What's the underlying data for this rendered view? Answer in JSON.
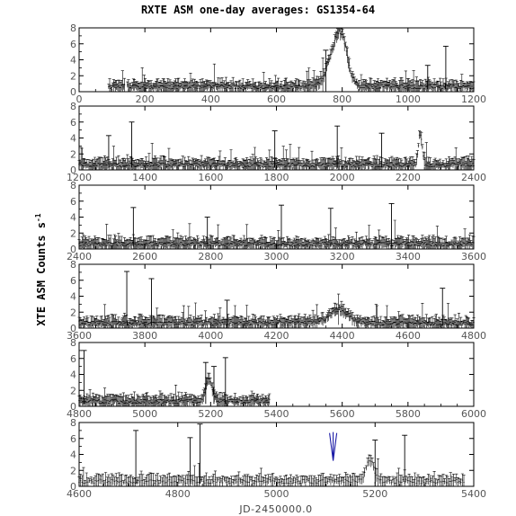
{
  "chart_data": {
    "type": "scatter",
    "title": "RXTE ASM one-day averages: GS1354-64",
    "ylabel": "XTE ASM Counts s",
    "ylabel_sup": "-1",
    "xlabel": "JD-2450000.0",
    "grid": false,
    "error_bars": true,
    "panels": [
      {
        "xlim": [
          0,
          1200
        ],
        "ylim": [
          0,
          8
        ],
        "x_ticks": [
          "0",
          "200",
          "400",
          "600",
          "800",
          "1000",
          "1200"
        ],
        "y_ticks": [
          "0",
          "2",
          "4",
          "6",
          "8"
        ],
        "data_start": 90,
        "data_end": 1200,
        "features": [
          [
            780,
            4.2,
            35
          ],
          [
            800,
            3.5,
            25
          ]
        ],
        "spikes": [
          [
            1115,
            5.7
          ],
          [
            1060,
            3.3
          ],
          [
            750,
            5.2
          ]
        ]
      },
      {
        "xlim": [
          1200,
          2400
        ],
        "ylim": [
          0,
          8
        ],
        "x_ticks": [
          "1200",
          "1400",
          "1600",
          "1800",
          "2000",
          "2200",
          "2400"
        ],
        "y_ticks": [
          "0",
          "2",
          "4",
          "6",
          "8"
        ],
        "data_start": 1200,
        "data_end": 2400,
        "features": [
          [
            2238,
            4.0,
            8
          ]
        ],
        "spikes": [
          [
            1360,
            6.0
          ],
          [
            1290,
            4.3
          ],
          [
            1795,
            4.9
          ],
          [
            1985,
            5.5
          ],
          [
            2120,
            4.6
          ]
        ]
      },
      {
        "xlim": [
          2400,
          3600
        ],
        "ylim": [
          0,
          8
        ],
        "x_ticks": [
          "2400",
          "2600",
          "2800",
          "3000",
          "3200",
          "3400",
          "3600"
        ],
        "y_ticks": [
          "0",
          "2",
          "4",
          "6",
          "8"
        ],
        "data_start": 2400,
        "data_end": 3600,
        "features": [],
        "spikes": [
          [
            2565,
            5.2
          ],
          [
            3015,
            5.5
          ],
          [
            3165,
            5.1
          ],
          [
            3350,
            5.7
          ],
          [
            2790,
            4.0
          ]
        ]
      },
      {
        "xlim": [
          3600,
          4800
        ],
        "ylim": [
          0,
          8
        ],
        "x_ticks": [
          "3600",
          "3800",
          "4000",
          "4200",
          "4400",
          "4600",
          "4800"
        ],
        "y_ticks": [
          "0",
          "2",
          "4",
          "6",
          "8"
        ],
        "data_start": 3600,
        "data_end": 4800,
        "features": [
          [
            4390,
            1.7,
            40
          ]
        ],
        "spikes": [
          [
            3745,
            7.1
          ],
          [
            3820,
            6.2
          ],
          [
            4705,
            5.0
          ],
          [
            4050,
            3.5
          ]
        ]
      },
      {
        "xlim": [
          4800,
          6000
        ],
        "ylim": [
          0,
          8
        ],
        "x_ticks": [
          "4800",
          "5000",
          "5200",
          "5400",
          "5600",
          "5800",
          "6000"
        ],
        "y_ticks": [
          "0",
          "2",
          "4",
          "6",
          "8"
        ],
        "data_start": 4800,
        "data_end": 5380,
        "features": [
          [
            5195,
            2.6,
            15
          ]
        ],
        "spikes": [
          [
            4815,
            7.0
          ],
          [
            5185,
            5.5
          ],
          [
            5245,
            6.1
          ],
          [
            5210,
            5.0
          ]
        ]
      },
      {
        "xlim": [
          4600,
          5400
        ],
        "ylim": [
          0,
          8
        ],
        "x_ticks": [
          "4600",
          "4800",
          "5000",
          "5200",
          "5400"
        ],
        "y_ticks": [
          "0",
          "2",
          "4",
          "6",
          "8"
        ],
        "data_start": 4600,
        "data_end": 5380,
        "features": [
          [
            5190,
            2.6,
            12
          ]
        ],
        "spikes": [
          [
            4715,
            7.0
          ],
          [
            4845,
            7.8
          ],
          [
            4825,
            6.1
          ],
          [
            5260,
            6.4
          ],
          [
            5200,
            5.8
          ]
        ],
        "arrow": {
          "x": 5115,
          "y_top": 6.8,
          "y_bottom": 3.2,
          "color": "#1a1aa6"
        }
      }
    ]
  }
}
